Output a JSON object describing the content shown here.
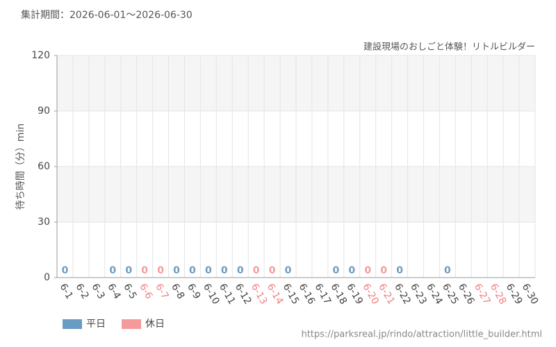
{
  "chart_data": {
    "type": "bar",
    "title": "集計期間：2026-06-01～2026-06-30",
    "subtitle": "建設現場のおしごと体験！リトルビルダー",
    "y_label": "待ち時間（分）min",
    "source": "https://parksreal.jp/rindo/attraction/little_builder.html",
    "categories": [
      "6-1",
      "6-2",
      "6-3",
      "6-4",
      "6-5",
      "6-6",
      "6-7",
      "6-8",
      "6-9",
      "6-10",
      "6-11",
      "6-12",
      "6-13",
      "6-14",
      "6-15",
      "6-16",
      "6-17",
      "6-18",
      "6-19",
      "6-20",
      "6-21",
      "6-22",
      "6-23",
      "6-24",
      "6-25",
      "6-26",
      "6-27",
      "6-28",
      "6-29",
      "6-30"
    ],
    "category_colors": [
      "#444",
      "#444",
      "#444",
      "#444",
      "#444",
      "#f08080",
      "#f08080",
      "#444",
      "#444",
      "#444",
      "#444",
      "#444",
      "#f08080",
      "#f08080",
      "#444",
      "#444",
      "#444",
      "#444",
      "#444",
      "#f08080",
      "#f08080",
      "#444",
      "#444",
      "#444",
      "#444",
      "#444",
      "#f08080",
      "#f08080",
      "#444",
      "#444"
    ],
    "series": [
      {
        "name": "平日",
        "color": "#6a9bc3",
        "values": [
          0,
          null,
          null,
          0,
          0,
          null,
          null,
          0,
          0,
          0,
          0,
          0,
          null,
          null,
          0,
          null,
          null,
          0,
          0,
          null,
          null,
          0,
          null,
          null,
          0,
          null,
          null,
          null,
          null,
          null
        ]
      },
      {
        "name": "休日",
        "color": "#f59a9a",
        "values": [
          null,
          null,
          null,
          null,
          null,
          0,
          0,
          null,
          null,
          null,
          null,
          null,
          0,
          0,
          null,
          null,
          null,
          null,
          null,
          0,
          0,
          null,
          null,
          null,
          null,
          null,
          null,
          null,
          null,
          null
        ]
      }
    ],
    "ylim": [
      0,
      120
    ],
    "yticks": [
      0,
      30,
      60,
      90,
      120
    ],
    "grid": true
  }
}
